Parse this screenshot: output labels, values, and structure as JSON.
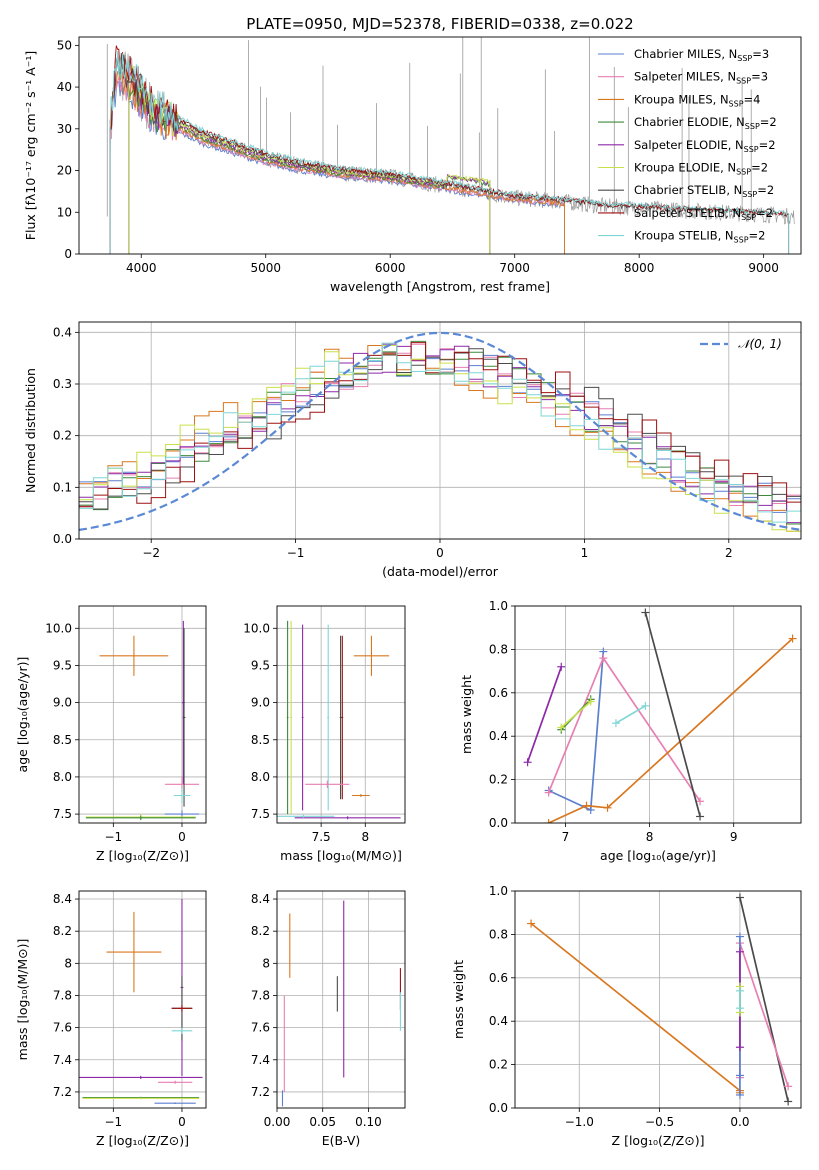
{
  "figure_title": "PLATE=0950, MJD=52378, FIBERID=0338, z=0.022",
  "colors": {
    "Chabrier MILES": "#5b7fcf",
    "Salpeter MILES": "#e77fb2",
    "Kroupa MILES": "#d9771f",
    "Chabrier ELODIE": "#3d8a3d",
    "Salpeter ELODIE": "#8e2aa8",
    "Kroupa ELODIE": "#c9e04a",
    "Chabrier STELIB": "#4a4a4a",
    "Salpeter STELIB": "#9e1010",
    "Kroupa STELIB": "#7fd6d6",
    "data": "#9a9a9a",
    "normal": "#5b89d6"
  },
  "chart_data": [
    {
      "id": "spectrum",
      "type": "line",
      "title": "PLATE=0950, MJD=52378, FIBERID=0338, z=0.022",
      "xlabel": "wavelength [Angstrom, rest frame]",
      "ylabel": "Flux [fλ10⁻¹⁷ erg cm⁻² s⁻¹ A⁻¹]",
      "xlim": [
        3500,
        9300
      ],
      "ylim": [
        0,
        52
      ],
      "xticks": [
        4000,
        5000,
        6000,
        7000,
        8000,
        9000
      ],
      "yticks": [
        0,
        10,
        20,
        30,
        40,
        50
      ],
      "legend": "top-right",
      "legend_entries": [
        "Chabrier MILES, N_SSP=3",
        "Salpeter MILES, N_SSP=3",
        "Kroupa MILES, N_SSP=4",
        "Chabrier ELODIE, N_SSP=2",
        "Salpeter ELODIE, N_SSP=2",
        "Kroupa ELODIE, N_SSP=2",
        "Chabrier STELIB, N_SSP=2",
        "Salpeter STELIB, N_SSP=2",
        "Kroupa STELIB, N_SSP=2"
      ],
      "continuum": {
        "x": [
          3750,
          3800,
          3900,
          4000,
          4100,
          4300,
          4500,
          4700,
          5000,
          5300,
          5600,
          6000,
          6300,
          6600,
          6800,
          7000,
          7400,
          7700,
          8000,
          8500,
          9000,
          9250
        ],
        "y": [
          30,
          44,
          42,
          38,
          34,
          31,
          28,
          26,
          23,
          21,
          19.5,
          18.5,
          17,
          15.5,
          14.5,
          13.5,
          12.5,
          11.5,
          11,
          10.2,
          9.5,
          9.0
        ]
      },
      "model_ranges": {
        "Chabrier MILES": [
          3750,
          7400
        ],
        "Salpeter MILES": [
          3750,
          7400
        ],
        "Kroupa MILES": [
          3750,
          7400
        ],
        "Chabrier ELODIE": [
          3900,
          6800
        ],
        "Salpeter ELODIE": [
          3900,
          6800
        ],
        "Kroupa ELODIE": [
          3900,
          6800
        ],
        "Chabrier STELIB": [
          3750,
          9200
        ],
        "Salpeter STELIB": [
          3750,
          9200
        ],
        "Kroupa STELIB": [
          3750,
          9200
        ]
      },
      "emission_lines": [
        3727,
        4861,
        4959,
        5007,
        5200,
        5460,
        5577,
        5890,
        6157,
        6300,
        6563,
        6583,
        6716,
        6731,
        6864,
        7246,
        7320,
        7600,
        7800,
        7913,
        8345,
        8400,
        8827,
        8900
      ]
    },
    {
      "id": "residuals",
      "type": "histogram",
      "xlabel": "(data-model)/error",
      "ylabel": "Normed distribution",
      "xlim": [
        -2.5,
        2.5
      ],
      "ylim": [
        0,
        0.42
      ],
      "xticks": [
        -2,
        -1,
        0,
        1,
        2
      ],
      "yticks": [
        0.0,
        0.1,
        0.2,
        0.3,
        0.4
      ],
      "bin_width": 0.1,
      "legend": "top-right",
      "legend_label": "𝒩(0, 1)",
      "normal_curve": {
        "mean": 0,
        "sigma": 1
      }
    },
    {
      "id": "z-age",
      "type": "errorbar",
      "xlabel": "Z [log₁₀(Z/Z⊙)]",
      "ylabel": "age  [log₁₀(age/yr)]",
      "xlim": [
        -1.5,
        0.35
      ],
      "ylim": [
        7.38,
        10.3
      ],
      "xticks": [
        -1,
        0
      ],
      "yticks": [
        7.5,
        8.0,
        8.5,
        9.0,
        9.5,
        10.0
      ],
      "points": [
        {
          "model": "Kroupa MILES",
          "x": -0.7,
          "xerr": 0.5,
          "y": 9.63,
          "yerr": 0.27
        },
        {
          "model": "Salpeter ELODIE",
          "x": 0.02,
          "xerr": 0.02,
          "y": 9.0,
          "yerr": 1.1
        },
        {
          "model": "Salpeter MILES",
          "x": 0.0,
          "xerr": 0.25,
          "y": 7.9,
          "yerr": 0.1
        },
        {
          "model": "Chabrier STELIB",
          "x": 0.03,
          "xerr": 0.02,
          "y": 8.8,
          "yerr": 1.2
        },
        {
          "model": "Kroupa STELIB",
          "x": 0.0,
          "xerr": 0.12,
          "y": 7.75,
          "yerr": 0.1
        },
        {
          "model": "Chabrier MILES",
          "x": 0.0,
          "xerr": 0.25,
          "y": 7.5,
          "yerr": 0.05
        },
        {
          "model": "Kroupa ELODIE",
          "x": -0.6,
          "xerr": 0.8,
          "y": 7.46,
          "yerr": 0.04
        },
        {
          "model": "Chabrier ELODIE",
          "x": -0.6,
          "xerr": 0.8,
          "y": 7.45,
          "yerr": 0.03
        }
      ]
    },
    {
      "id": "mass-age",
      "type": "errorbar",
      "xlabel": "mass [log₁₀(M/M⊙)]",
      "ylabel": "",
      "xlim": [
        7.0,
        8.45
      ],
      "ylim": [
        7.38,
        10.3
      ],
      "xticks": [
        7.5,
        8.0
      ],
      "yticks": [
        7.5,
        8.0,
        8.5,
        9.0,
        9.5,
        10.0
      ],
      "points": [
        {
          "model": "Kroupa MILES",
          "x": 8.07,
          "xerr": 0.2,
          "y": 9.63,
          "yerr": 0.27
        },
        {
          "model": "Chabrier ELODIE",
          "x": 7.12,
          "xerr": 0.01,
          "y": 8.8,
          "yerr": 1.3
        },
        {
          "model": "Kroupa ELODIE",
          "x": 7.16,
          "xerr": 0.01,
          "y": 8.8,
          "yerr": 1.3
        },
        {
          "model": "Salpeter ELODIE",
          "x": 7.29,
          "xerr": 0.01,
          "y": 8.8,
          "yerr": 1.25
        },
        {
          "model": "Kroupa STELIB",
          "x": 7.58,
          "xerr": 0.01,
          "y": 8.8,
          "yerr": 1.25
        },
        {
          "model": "Chabrier STELIB",
          "x": 7.72,
          "xerr": 0.01,
          "y": 8.8,
          "yerr": 1.1
        },
        {
          "model": "Salpeter STELIB",
          "x": 7.74,
          "xerr": 0.01,
          "y": 8.8,
          "yerr": 1.1
        },
        {
          "model": "Salpeter MILES",
          "x": 7.57,
          "xerr": 0.25,
          "y": 7.9,
          "yerr": 0.05
        },
        {
          "model": "Salpeter ELODIE",
          "x": 7.8,
          "xerr": 0.6,
          "y": 7.45,
          "yerr": 0.02
        },
        {
          "model": "Kroupa STELIB",
          "x": 7.3,
          "xerr": 0.35,
          "y": 7.47,
          "yerr": 0.02
        },
        {
          "model": "Kroupa MILES",
          "x": 7.95,
          "xerr": 0.1,
          "y": 7.75,
          "yerr": 0.02
        }
      ]
    },
    {
      "id": "age-weight",
      "type": "line",
      "xlabel": "age  [log₁₀(age/yr)]",
      "ylabel": "mass weight",
      "xlim": [
        6.4,
        9.8
      ],
      "ylim": [
        0,
        1.0
      ],
      "xticks": [
        7,
        8,
        9
      ],
      "yticks": [
        0.0,
        0.2,
        0.4,
        0.6,
        0.8,
        1.0
      ],
      "series": [
        {
          "model": "Chabrier MILES",
          "x": [
            6.8,
            7.3,
            7.45
          ],
          "y": [
            0.15,
            0.06,
            0.79
          ]
        },
        {
          "model": "Salpeter MILES",
          "x": [
            6.8,
            7.45,
            8.6
          ],
          "y": [
            0.14,
            0.76,
            0.1
          ]
        },
        {
          "model": "Kroupa MILES",
          "x": [
            6.8,
            7.25,
            7.5,
            9.7
          ],
          "y": [
            0.0,
            0.08,
            0.07,
            0.85
          ]
        },
        {
          "model": "Chabrier ELODIE",
          "x": [
            6.95,
            7.3
          ],
          "y": [
            0.43,
            0.57
          ]
        },
        {
          "model": "Salpeter ELODIE",
          "x": [
            6.55,
            6.95
          ],
          "y": [
            0.28,
            0.72
          ]
        },
        {
          "model": "Kroupa ELODIE",
          "x": [
            6.95,
            7.3
          ],
          "y": [
            0.44,
            0.56
          ]
        },
        {
          "model": "Chabrier STELIB",
          "x": [
            7.95,
            8.6
          ],
          "y": [
            0.97,
            0.03
          ]
        },
        {
          "model": "Kroupa STELIB",
          "x": [
            7.6,
            7.95
          ],
          "y": [
            0.46,
            0.54
          ]
        }
      ]
    },
    {
      "id": "z-mass",
      "type": "errorbar",
      "xlabel": "Z [log₁₀(Z/Z⊙)]",
      "ylabel": "mass [log₁₀(M/M⊙)]",
      "xlim": [
        -1.5,
        0.35
      ],
      "ylim": [
        7.1,
        8.45
      ],
      "xticks": [
        -1,
        0
      ],
      "yticks": [
        7.2,
        7.4,
        7.6,
        7.8,
        8.0,
        8.2,
        8.4
      ],
      "points": [
        {
          "model": "Kroupa MILES",
          "x": -0.7,
          "xerr": 0.4,
          "y": 8.07,
          "yerr": 0.25
        },
        {
          "model": "Salpeter ELODIE",
          "x": 0.0,
          "xerr": 0.02,
          "y": 7.85,
          "yerr": 0.55
        },
        {
          "model": "Chabrier STELIB",
          "x": 0.0,
          "xerr": 0.15,
          "y": 7.72,
          "yerr": 0.2
        },
        {
          "model": "Salpeter STELIB",
          "x": 0.0,
          "xerr": 0.15,
          "y": 7.72,
          "yerr": 0.02
        },
        {
          "model": "Kroupa STELIB",
          "x": 0.0,
          "xerr": 0.15,
          "y": 7.58,
          "yerr": 0.02
        },
        {
          "model": "Salpeter ELODIE",
          "x": -0.6,
          "xerr": 0.9,
          "y": 7.29,
          "yerr": 0.01
        },
        {
          "model": "Salpeter MILES",
          "x": -0.1,
          "xerr": 0.25,
          "y": 7.26,
          "yerr": 0.01
        },
        {
          "model": "Chabrier ELODIE",
          "x": -0.6,
          "xerr": 0.85,
          "y": 7.165,
          "yerr": 0.005
        },
        {
          "model": "Kroupa ELODIE",
          "x": -0.6,
          "xerr": 0.85,
          "y": 7.16,
          "yerr": 0.005
        },
        {
          "model": "Chabrier MILES",
          "x": -0.1,
          "xerr": 0.3,
          "y": 7.13,
          "yerr": 0.005
        }
      ]
    },
    {
      "id": "ebv-mass",
      "type": "errorbar",
      "xlabel": "E(B-V)",
      "ylabel": "",
      "xlim": [
        0.0,
        0.14
      ],
      "ylim": [
        7.1,
        8.45
      ],
      "xticks": [
        0.0,
        0.05,
        0.1
      ],
      "xticklabels": [
        "0.00",
        "0.05",
        "0.10"
      ],
      "yticks": [
        7.2,
        7.4,
        7.6,
        7.8,
        8.0,
        8.2,
        8.4
      ],
      "points": [
        {
          "model": "Chabrier MILES",
          "x": 0.006,
          "xerr": 0.0,
          "y": 7.16,
          "yerr": 0.05
        },
        {
          "model": "Salpeter MILES",
          "x": 0.008,
          "xerr": 0.0,
          "y": 7.5,
          "yerr": 0.3
        },
        {
          "model": "Kroupa MILES",
          "x": 0.014,
          "xerr": 0.0,
          "y": 8.11,
          "yerr": 0.2
        },
        {
          "model": "Chabrier STELIB",
          "x": 0.066,
          "xerr": 0.0,
          "y": 7.81,
          "yerr": 0.11
        },
        {
          "model": "Salpeter ELODIE",
          "x": 0.073,
          "xerr": 0.0,
          "y": 7.84,
          "yerr": 0.55
        },
        {
          "model": "Salpeter STELIB",
          "x": 0.135,
          "xerr": 0.0,
          "y": 7.84,
          "yerr": 0.13
        },
        {
          "model": "Kroupa STELIB",
          "x": 0.135,
          "xerr": 0.0,
          "y": 7.7,
          "yerr": 0.12
        }
      ]
    },
    {
      "id": "z-weight",
      "type": "line",
      "xlabel": "Z [log₁₀(Z/Z⊙)]",
      "ylabel": "mass weight",
      "xlim": [
        -1.4,
        0.38
      ],
      "ylim": [
        0,
        1.0
      ],
      "xticks": [
        -1.0,
        -0.5,
        0.0
      ],
      "xticklabels": [
        "−1.0",
        "−0.5",
        "0.0"
      ],
      "yticks": [
        0.0,
        0.2,
        0.4,
        0.6,
        0.8,
        1.0
      ],
      "series": [
        {
          "model": "Kroupa MILES",
          "x": [
            -1.3,
            0.0,
            0.0
          ],
          "y": [
            0.85,
            0.08,
            0.07
          ]
        },
        {
          "model": "Chabrier STELIB",
          "x": [
            0.0,
            0.3
          ],
          "y": [
            0.97,
            0.03
          ]
        },
        {
          "model": "Salpeter MILES",
          "x": [
            0.0,
            0.0,
            0.3
          ],
          "y": [
            0.14,
            0.76,
            0.1
          ]
        },
        {
          "model": "Chabrier MILES",
          "x": [
            0.0,
            0.0,
            0.0
          ],
          "y": [
            0.15,
            0.06,
            0.79
          ]
        },
        {
          "model": "Salpeter ELODIE",
          "x": [
            0.0,
            0.0
          ],
          "y": [
            0.28,
            0.72
          ]
        },
        {
          "model": "Kroupa ELODIE",
          "x": [
            0.0,
            0.0
          ],
          "y": [
            0.44,
            0.56
          ]
        },
        {
          "model": "Kroupa STELIB",
          "x": [
            0.0,
            0.0
          ],
          "y": [
            0.46,
            0.54
          ]
        }
      ]
    }
  ]
}
